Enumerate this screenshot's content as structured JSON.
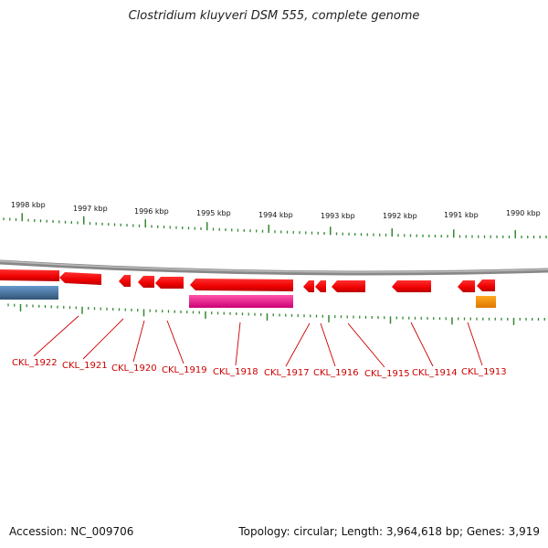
{
  "title": "Clostridium kluyveri DSM 555, complete genome",
  "accession": "Accession: NC_009706",
  "summary": "Topology: circular; Length: 3,964,618 bp; Genes: 3,919",
  "kbp_labels": [
    "1998 kbp",
    "1997 kbp",
    "1996 kbp",
    "1995 kbp",
    "1994 kbp",
    "1993 kbp",
    "1992 kbp",
    "1991 kbp",
    "1990 kbp"
  ],
  "gene_labels": [
    "CKL_1922",
    "CKL_1921",
    "CKL_1920",
    "CKL_1919",
    "CKL_1918",
    "CKL_1917",
    "CKL_1916",
    "CKL_1915",
    "CKL_1914",
    "CKL_1913"
  ],
  "colors": {
    "gene": "#ee0000",
    "rna_pink": "#ee1188",
    "blue": "#4477aa",
    "orange": "#ff9900",
    "tick": "#338833",
    "label": "#cc0000",
    "backbone": "#888888"
  }
}
